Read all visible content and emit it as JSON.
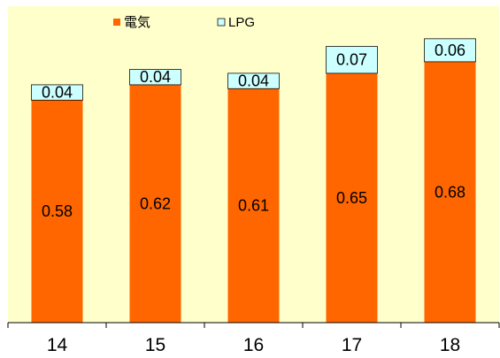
{
  "chart_data": {
    "type": "bar",
    "stacked": true,
    "categories": [
      "14",
      "15",
      "16",
      "17",
      "18"
    ],
    "series": [
      {
        "name": "電気",
        "values": [
          0.58,
          0.62,
          0.61,
          0.65,
          0.68
        ],
        "color": "#FF6600"
      },
      {
        "name": "LPG",
        "values": [
          0.04,
          0.04,
          0.04,
          0.07,
          0.06
        ],
        "color": "#CCFFFF"
      }
    ],
    "title": "",
    "xlabel": "",
    "ylabel": "",
    "ylim": [
      0,
      0.8
    ],
    "grid": false,
    "legend_position": "top-left",
    "plot_background": "#FFFFCC"
  }
}
